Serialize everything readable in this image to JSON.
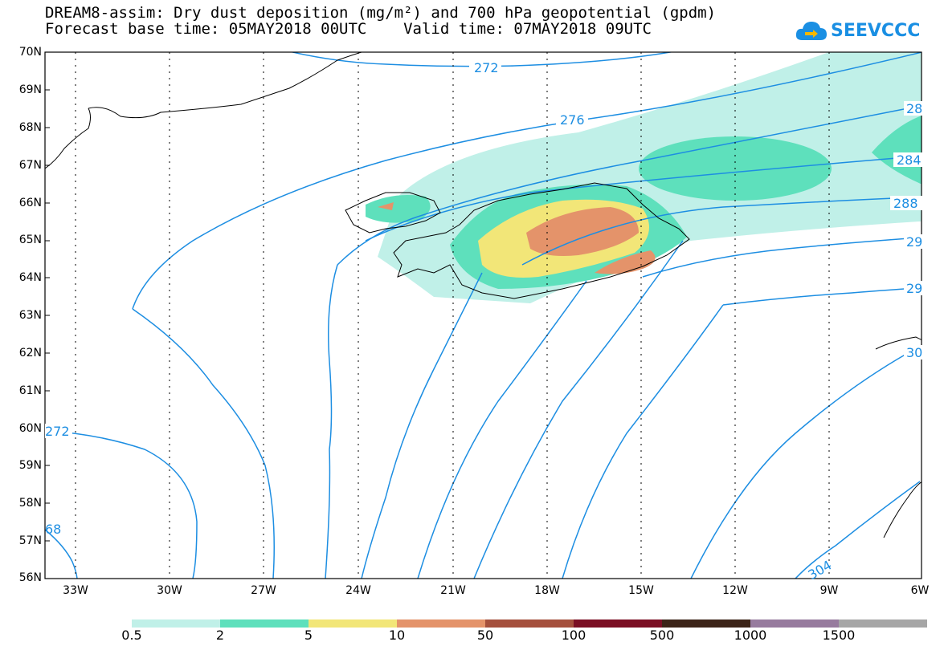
{
  "header": {
    "title_line1": "DREAM8-assim: Dry dust deposition (mg/m²) and 700 hPa geopotential (gpdm)",
    "title_line2": "Forecast base time: 05MAY2018 00UTC    Valid time: 07MAY2018 09UTC",
    "logo_text": "SEEVCCC"
  },
  "axes": {
    "lat_labels": [
      "70N",
      "69N",
      "68N",
      "67N",
      "66N",
      "65N",
      "64N",
      "63N",
      "62N",
      "61N",
      "60N",
      "59N",
      "58N",
      "57N",
      "56N"
    ],
    "lon_labels": [
      "33W",
      "30W",
      "27W",
      "24W",
      "21W",
      "18W",
      "15W",
      "12W",
      "9W",
      "6W"
    ]
  },
  "contour_labels": {
    "c272_top": "272",
    "c276": "276",
    "c280": "28",
    "c284": "284",
    "c288": "288",
    "c292": "29",
    "c296": "29",
    "c300": "30",
    "c304": "304",
    "c272_left": "272",
    "c268": "68"
  },
  "colorbar": {
    "labels": [
      "0.5",
      "2",
      "5",
      "10",
      "50",
      "100",
      "500",
      "1000",
      "1500"
    ],
    "colors": [
      "#c0f0e8",
      "#5ee0bc",
      "#f2e678",
      "#e4936a",
      "#a5503d",
      "#7b0f24",
      "#3c2418",
      "#977b9e",
      "#a6a6a6"
    ]
  },
  "palette": {
    "contour": "#1d8ee2",
    "coast": "#000000"
  }
}
